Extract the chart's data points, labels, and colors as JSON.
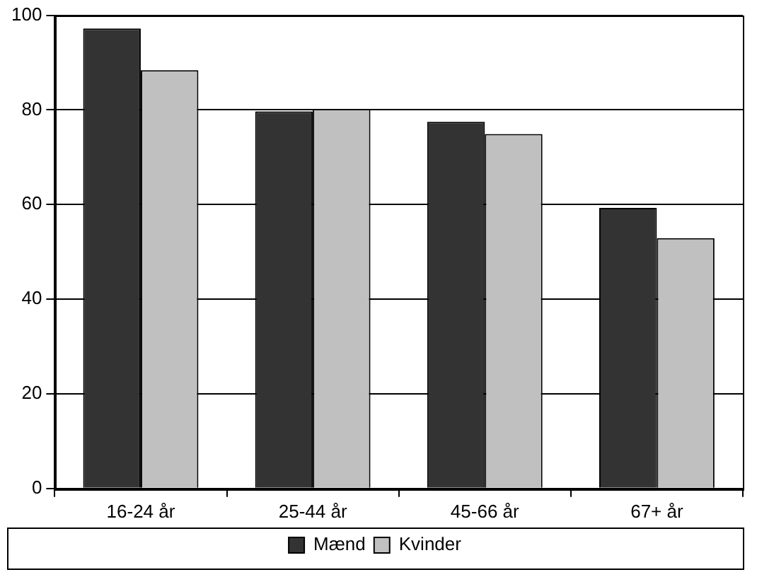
{
  "chart_data": {
    "type": "bar",
    "categories": [
      "16-24 år",
      "25-44 år",
      "45-66 år",
      "67+ år"
    ],
    "series": [
      {
        "name": "Mænd",
        "color": "#333333",
        "values": [
          97.2,
          79.7,
          77.5,
          59.3
        ]
      },
      {
        "name": "Kvinder",
        "color": "#c0c0c0",
        "values": [
          88.4,
          80.2,
          74.9,
          52.9
        ]
      }
    ],
    "ylim": [
      0,
      100
    ],
    "yticks": [
      0,
      20,
      40,
      60,
      80,
      100
    ],
    "grid": "y",
    "legend": "bottom"
  }
}
